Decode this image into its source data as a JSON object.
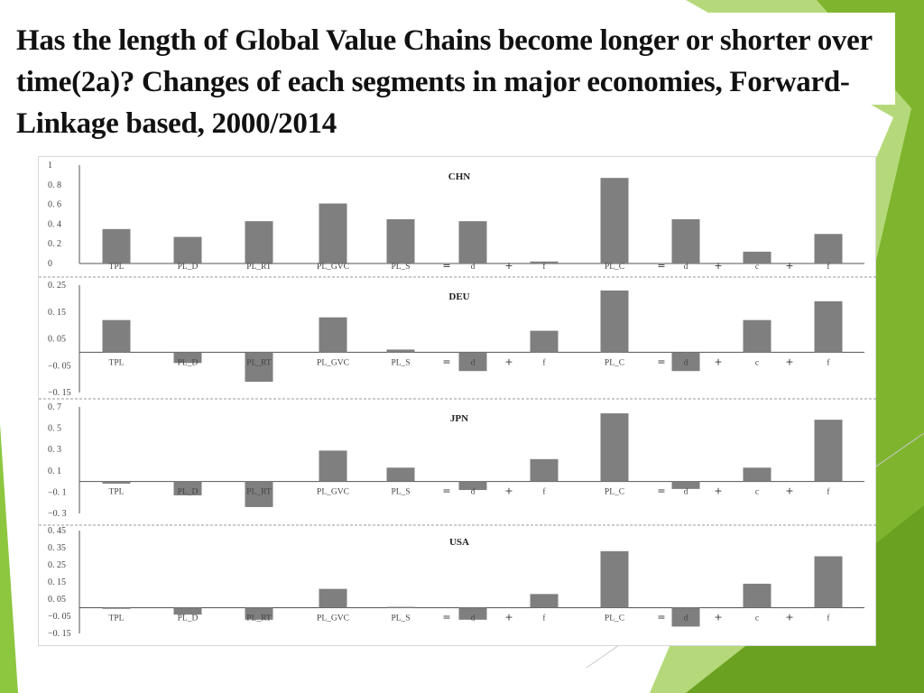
{
  "slide": {
    "title": "Has the length of Global Value Chains become longer or shorter over time(2a)? Changes of  each segments in major economies, Forward-Linkage based, 2000/2014",
    "colors": {
      "green_dark": "#6aa121",
      "green_light": "#a8d060",
      "bar": "#7f7f7f"
    }
  },
  "chart_data": [
    {
      "type": "bar",
      "title": "CHN",
      "categories": [
        "TPL",
        "PL_D",
        "PL_RT",
        "PL_GVC",
        "PL_S",
        "d",
        "f",
        "PL_C",
        "d",
        "c",
        "f"
      ],
      "operators": [
        "=",
        "+",
        "=",
        "+",
        "+"
      ],
      "yticks": [
        "1",
        "0. 8",
        "0. 6",
        "0. 4",
        "0. 2",
        "0"
      ],
      "ylim": [
        0,
        1
      ],
      "values": [
        0.35,
        0.27,
        0.43,
        0.61,
        0.45,
        0.43,
        0.02,
        0.87,
        0.45,
        0.12,
        0.3
      ]
    },
    {
      "type": "bar",
      "title": "DEU",
      "categories": [
        "TPL",
        "PL_D",
        "PL_RT",
        "PL_GVC",
        "PL_S",
        "d",
        "f",
        "PL_C",
        "d",
        "c",
        "f"
      ],
      "operators": [
        "=",
        "+",
        "=",
        "+",
        "+"
      ],
      "yticks": [
        "0. 25",
        "0. 15",
        "0. 05",
        "−0. 05",
        "−0. 15"
      ],
      "ylim": [
        -0.15,
        0.25
      ],
      "values": [
        0.12,
        -0.04,
        -0.11,
        0.13,
        0.01,
        -0.07,
        0.08,
        0.23,
        -0.07,
        0.12,
        0.19
      ]
    },
    {
      "type": "bar",
      "title": "JPN",
      "categories": [
        "TPL",
        "PL_D",
        "PL_RT",
        "PL_GVC",
        "PL_S",
        "d",
        "f",
        "PL_C",
        "d",
        "c",
        "f"
      ],
      "operators": [
        "=",
        "+",
        "=",
        "+",
        "+"
      ],
      "yticks": [
        "0. 7",
        "0. 5",
        "0. 3",
        "0. 1",
        "−0. 1",
        "−0. 3"
      ],
      "ylim": [
        -0.3,
        0.7
      ],
      "values": [
        -0.02,
        -0.13,
        -0.24,
        0.29,
        0.13,
        -0.08,
        0.21,
        0.64,
        -0.07,
        0.13,
        0.58
      ]
    },
    {
      "type": "bar",
      "title": "USA",
      "categories": [
        "TPL",
        "PL_D",
        "PL_RT",
        "PL_GVC",
        "PL_S",
        "d",
        "f",
        "PL_C",
        "d",
        "c",
        "f"
      ],
      "operators": [
        "=",
        "+",
        "=",
        "+",
        "+"
      ],
      "yticks": [
        "0. 45",
        "0. 35",
        "0. 25",
        "0. 15",
        "0. 05",
        "−0. 05",
        "−0. 15"
      ],
      "ylim": [
        -0.15,
        0.45
      ],
      "values": [
        -0.005,
        -0.04,
        -0.07,
        0.11,
        0.005,
        -0.07,
        0.08,
        0.33,
        -0.11,
        0.14,
        0.3
      ]
    }
  ]
}
